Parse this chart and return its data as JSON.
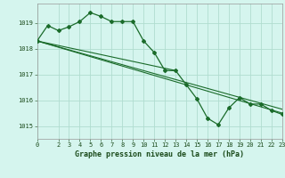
{
  "title": "Graphe pression niveau de la mer (hPa)",
  "background_color": "#d5f5ee",
  "grid_color": "#b0ddd0",
  "line_color": "#1a6b2a",
  "xlim": [
    0,
    23
  ],
  "ylim": [
    1014.5,
    1019.75
  ],
  "yticks": [
    1015,
    1016,
    1017,
    1018,
    1019
  ],
  "xticks": [
    0,
    2,
    3,
    4,
    5,
    6,
    7,
    8,
    9,
    10,
    11,
    12,
    13,
    14,
    15,
    16,
    17,
    18,
    19,
    20,
    21,
    22,
    23
  ],
  "main_series": [
    [
      0,
      1018.3
    ],
    [
      1,
      1018.9
    ],
    [
      2,
      1018.7
    ],
    [
      3,
      1018.85
    ],
    [
      4,
      1019.05
    ],
    [
      5,
      1019.4
    ],
    [
      6,
      1019.25
    ],
    [
      7,
      1019.05
    ],
    [
      8,
      1019.05
    ],
    [
      9,
      1019.05
    ],
    [
      10,
      1018.3
    ],
    [
      11,
      1017.85
    ],
    [
      12,
      1017.15
    ],
    [
      13,
      1017.15
    ],
    [
      14,
      1016.6
    ],
    [
      15,
      1016.05
    ],
    [
      16,
      1015.3
    ],
    [
      17,
      1015.05
    ],
    [
      18,
      1015.7
    ],
    [
      19,
      1016.1
    ],
    [
      20,
      1015.85
    ],
    [
      21,
      1015.85
    ],
    [
      22,
      1015.6
    ],
    [
      23,
      1015.45
    ]
  ],
  "trend_line1": [
    [
      0,
      1018.3
    ],
    [
      23,
      1015.5
    ]
  ],
  "trend_line2": [
    [
      0,
      1018.3
    ],
    [
      13,
      1017.15
    ]
  ],
  "trend_line3": [
    [
      0,
      1018.3
    ],
    [
      23,
      1015.65
    ]
  ]
}
